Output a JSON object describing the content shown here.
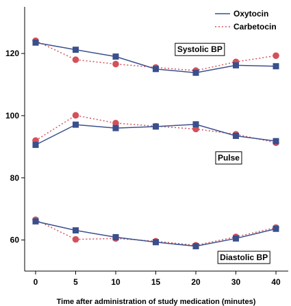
{
  "chart_data": {
    "type": "line",
    "title": "",
    "xlabel": "Time after administration of study medication (minutes)",
    "ylabel": "",
    "categories": [
      "0",
      "5",
      "10",
      "15",
      "20",
      "30",
      "40"
    ],
    "yticks": [
      60,
      80,
      100,
      120
    ],
    "ylim": [
      50,
      135
    ],
    "grid": false,
    "legend_position": "top-right",
    "series": [
      {
        "name": "Oxytocin",
        "color": "#3a4f8c",
        "line_style": "solid",
        "marker": "square",
        "groups": [
          {
            "label": "Systolic BP",
            "values": [
              123.5,
              121.2,
              119.0,
              115.0,
              113.8,
              116.2,
              115.9
            ]
          },
          {
            "label": "Pulse",
            "values": [
              90.6,
              97.1,
              96.0,
              96.5,
              97.2,
              93.5,
              91.8
            ]
          },
          {
            "label": "Diastolic BP",
            "values": [
              66.0,
              63.1,
              60.9,
              59.3,
              58.0,
              60.5,
              63.6
            ]
          }
        ]
      },
      {
        "name": "Carbetocin",
        "color": "#d4505a",
        "line_style": "dotted",
        "marker": "circle",
        "groups": [
          {
            "label": "Systolic BP",
            "values": [
              124.1,
              118.0,
              116.6,
              115.5,
              114.5,
              117.3,
              119.3
            ]
          },
          {
            "label": "Pulse",
            "values": [
              92.0,
              100.1,
              97.6,
              96.6,
              95.7,
              94.0,
              91.3
            ]
          },
          {
            "label": "Diastolic BP",
            "values": [
              66.5,
              60.2,
              60.5,
              59.6,
              58.3,
              61.0,
              64.0
            ]
          }
        ]
      }
    ],
    "annotations": [
      {
        "text": "Systolic BP",
        "x_index": 4.1,
        "y": 121.3
      },
      {
        "text": "Pulse",
        "x_index": 4.82,
        "y": 86.4
      },
      {
        "text": "Diastolic BP",
        "x_index": 5.2,
        "y": 54.4
      }
    ]
  }
}
